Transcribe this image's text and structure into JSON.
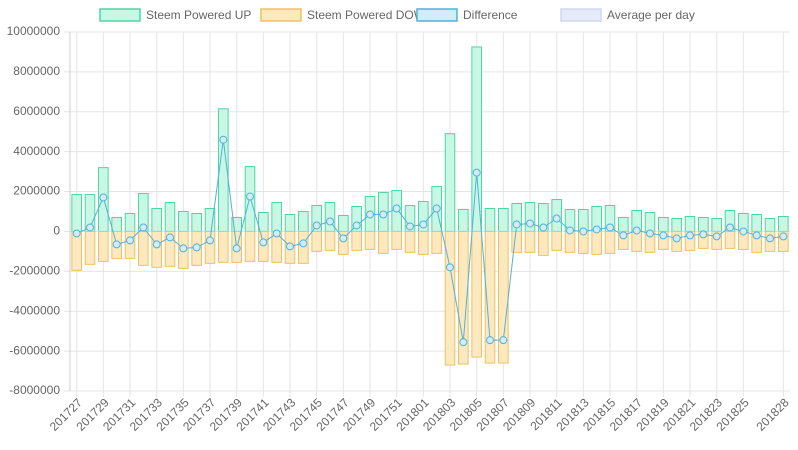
{
  "chart_data": {
    "type": "bar",
    "categories": [
      "201727",
      null,
      "201729",
      null,
      "201731",
      null,
      "201733",
      null,
      "201735",
      null,
      "201737",
      null,
      "201739",
      null,
      "201741",
      null,
      "201743",
      null,
      "201745",
      null,
      "201747",
      null,
      "201749",
      null,
      "201751",
      null,
      "201801",
      null,
      "201803",
      null,
      "201805",
      null,
      "201807",
      null,
      "201809",
      null,
      "201811",
      null,
      "201813",
      null,
      "201815",
      null,
      "201817",
      null,
      "201819",
      null,
      "201821",
      null,
      "201823",
      null,
      "201825",
      null,
      null,
      "201828"
    ],
    "series": [
      {
        "name": "Steem Powered UP",
        "type": "bar",
        "color": "#4bd6a3",
        "fill": "#c9f7e6",
        "values": [
          1850000,
          1850000,
          3200000,
          700000,
          900000,
          1900000,
          1150000,
          1450000,
          1000000,
          900000,
          1150000,
          6150000,
          700000,
          3250000,
          950000,
          1450000,
          850000,
          1000000,
          1300000,
          1450000,
          800000,
          1250000,
          1750000,
          1950000,
          2050000,
          1300000,
          1500000,
          2250000,
          4900000,
          1100000,
          9250000,
          1150000,
          1150000,
          1400000,
          1450000,
          1400000,
          1600000,
          1100000,
          1100000,
          1250000,
          1300000,
          700000,
          1050000,
          950000,
          700000,
          650000,
          750000,
          700000,
          650000,
          1050000,
          900000,
          850000,
          650000,
          750000
        ]
      },
      {
        "name": "Steem Powered DOWN",
        "type": "bar",
        "color": "#f0c060",
        "fill": "#fde9c0",
        "values": [
          -1950000,
          -1650000,
          -1500000,
          -1350000,
          -1350000,
          -1700000,
          -1800000,
          -1750000,
          -1850000,
          -1700000,
          -1600000,
          -1550000,
          -1550000,
          -1500000,
          -1500000,
          -1550000,
          -1600000,
          -1600000,
          -1000000,
          -950000,
          -1150000,
          -950000,
          -900000,
          -1100000,
          -900000,
          -1050000,
          -1150000,
          -1100000,
          -6700000,
          -6650000,
          -6300000,
          -6600000,
          -6600000,
          -1050000,
          -1050000,
          -1200000,
          -950000,
          -1050000,
          -1100000,
          -1150000,
          -1100000,
          -900000,
          -1000000,
          -1050000,
          -900000,
          -1000000,
          -950000,
          -850000,
          -900000,
          -850000,
          -900000,
          -1050000,
          -1000000,
          -1000000
        ]
      },
      {
        "name": "Difference",
        "type": "line",
        "color": "#4fb3d9",
        "fill": "#d4ecfa",
        "values": [
          -100000,
          200000,
          1700000,
          -650000,
          -450000,
          200000,
          -650000,
          -300000,
          -850000,
          -800000,
          -450000,
          4600000,
          -850000,
          1750000,
          -550000,
          -100000,
          -750000,
          -600000,
          300000,
          500000,
          -350000,
          300000,
          850000,
          850000,
          1150000,
          250000,
          350000,
          1150000,
          -1800000,
          -5550000,
          2950000,
          -5450000,
          -5450000,
          350000,
          400000,
          200000,
          650000,
          50000,
          0,
          100000,
          200000,
          -200000,
          50000,
          -100000,
          -200000,
          -350000,
          -200000,
          -150000,
          -250000,
          200000,
          0,
          -200000,
          -350000,
          -250000
        ]
      },
      {
        "name": "Average per day",
        "type": "line",
        "color": "#d0d8f0",
        "fill": "#e6ebfa",
        "values": [
          null,
          null,
          null,
          null,
          null,
          null,
          null,
          null,
          null,
          null,
          null,
          null,
          null,
          null,
          null,
          null,
          null,
          null,
          null,
          null,
          null,
          null,
          null,
          null,
          null,
          null,
          null,
          null,
          null,
          null,
          null,
          null,
          null,
          null,
          null,
          null,
          null,
          null,
          null,
          null,
          null,
          null,
          null,
          null,
          null,
          null,
          null,
          null,
          null,
          null,
          null,
          null,
          null,
          null
        ]
      }
    ],
    "ylim": [
      -8000000,
      10000000
    ],
    "yticks": [
      10000000,
      8000000,
      6000000,
      4000000,
      2000000,
      0,
      -2000000,
      -4000000,
      -6000000,
      -8000000
    ],
    "grid": true,
    "legend": "top"
  }
}
